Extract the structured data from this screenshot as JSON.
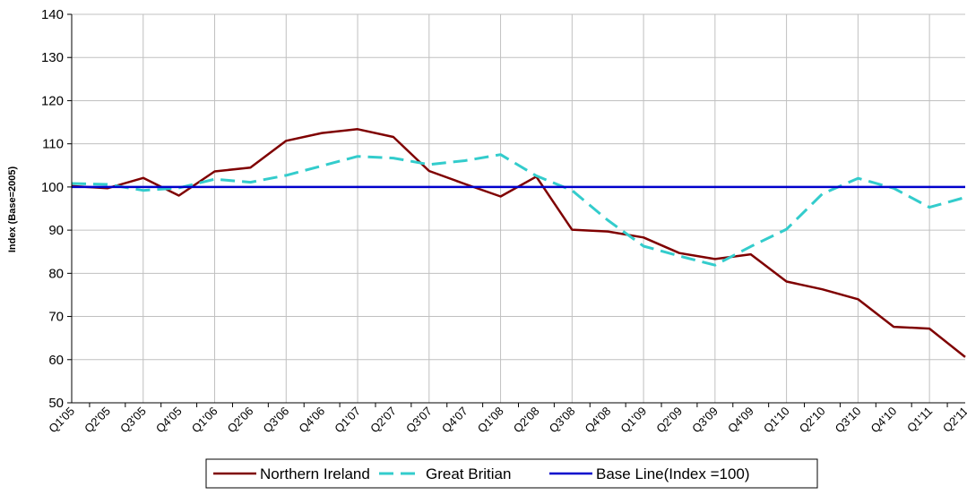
{
  "chart_data": {
    "type": "line",
    "title": "",
    "xlabel": "",
    "ylabel": "Index (Base=2005)",
    "ylim": [
      50,
      140
    ],
    "yticks": [
      50,
      60,
      70,
      80,
      90,
      100,
      110,
      120,
      130,
      140
    ],
    "grid": true,
    "legend_position": "bottom",
    "categories": [
      "Q1'05",
      "Q2'05",
      "Q3'05",
      "Q4'05",
      "Q1'06",
      "Q2'06",
      "Q3'06",
      "Q4'06",
      "Q1'07",
      "Q2'07",
      "Q3'07",
      "Q4'07",
      "Q1'08",
      "Q2'08",
      "Q3'08",
      "Q4'08",
      "Q1'09",
      "Q2'09",
      "Q3'09",
      "Q4'09",
      "Q1'10",
      "Q2'10",
      "Q3'10",
      "Q4'10",
      "Q1'11",
      "Q2'11"
    ],
    "series": [
      {
        "name": "Northern Ireland",
        "color": "#7f0000",
        "style": "solid",
        "values": [
          100.2,
          99.7,
          102.1,
          98.0,
          103.6,
          104.5,
          110.7,
          112.5,
          113.4,
          111.6,
          103.7,
          100.7,
          97.8,
          102.4,
          90.1,
          89.7,
          88.3,
          84.7,
          83.3,
          84.4,
          78.1,
          76.3,
          74.0,
          67.6,
          67.2,
          60.6
        ]
      },
      {
        "name": "Great Britian",
        "color": "#33cccc",
        "style": "dashed",
        "values": [
          100.8,
          100.6,
          99.2,
          99.8,
          101.8,
          101.1,
          102.7,
          104.9,
          107.1,
          106.7,
          105.2,
          106.1,
          107.5,
          102.6,
          99.2,
          92.3,
          86.3,
          84.0,
          81.9,
          86.2,
          90.2,
          98.4,
          102.0,
          99.7,
          95.3,
          97.6
        ]
      },
      {
        "name": "Base Line(Index =100)",
        "color": "#0000cc",
        "style": "solid",
        "values": [
          100,
          100,
          100,
          100,
          100,
          100,
          100,
          100,
          100,
          100,
          100,
          100,
          100,
          100,
          100,
          100,
          100,
          100,
          100,
          100,
          100,
          100,
          100,
          100,
          100,
          100
        ]
      }
    ]
  }
}
